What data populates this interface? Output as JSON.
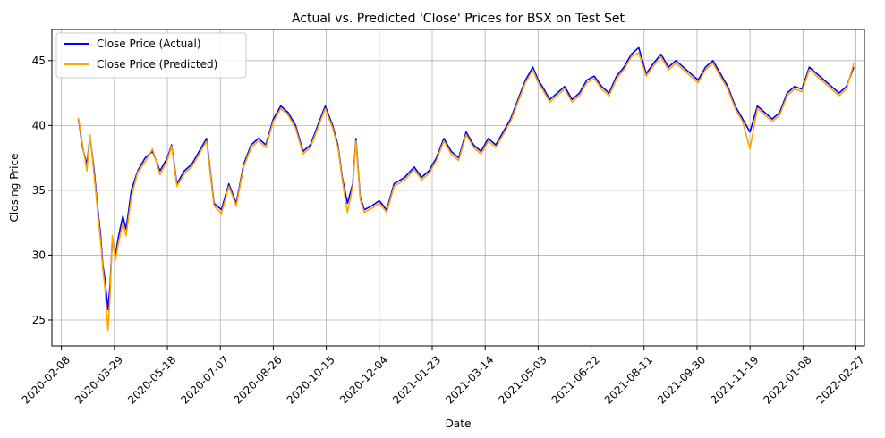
{
  "chart_data": {
    "type": "line",
    "title": "Actual vs. Predicted 'Close' Prices for BSX on Test Set",
    "xlabel": "Date",
    "ylabel": "Closing Price",
    "xlim": [
      "2020-01-30",
      "2022-03-07"
    ],
    "ylim": [
      23,
      47.4
    ],
    "grid": true,
    "legend": "top-left",
    "x_ticks": [
      "2020-02-08",
      "2020-03-29",
      "2020-05-18",
      "2020-07-07",
      "2020-08-26",
      "2020-10-15",
      "2020-12-04",
      "2021-01-23",
      "2021-03-14",
      "2021-05-03",
      "2021-06-22",
      "2021-08-11",
      "2021-09-30",
      "2021-11-19",
      "2022-01-08",
      "2022-02-27"
    ],
    "y_ticks": [
      25,
      30,
      35,
      40,
      45
    ],
    "series": [
      {
        "name": "Close Price (Actual)",
        "color": "#0000ff",
        "x": [
          "2020-02-24",
          "2020-02-28",
          "2020-03-03",
          "2020-03-06",
          "2020-03-10",
          "2020-03-13",
          "2020-03-16",
          "2020-03-18",
          "2020-03-20",
          "2020-03-23",
          "2020-03-25",
          "2020-03-27",
          "2020-03-30",
          "2020-04-02",
          "2020-04-06",
          "2020-04-09",
          "2020-04-14",
          "2020-04-20",
          "2020-04-27",
          "2020-05-04",
          "2020-05-11",
          "2020-05-18",
          "2020-05-22",
          "2020-05-27",
          "2020-06-03",
          "2020-06-10",
          "2020-06-17",
          "2020-06-24",
          "2020-07-01",
          "2020-07-08",
          "2020-07-15",
          "2020-07-22",
          "2020-07-29",
          "2020-08-05",
          "2020-08-12",
          "2020-08-19",
          "2020-08-26",
          "2020-09-02",
          "2020-09-09",
          "2020-09-16",
          "2020-09-23",
          "2020-09-30",
          "2020-10-07",
          "2020-10-14",
          "2020-10-21",
          "2020-10-26",
          "2020-10-30",
          "2020-11-04",
          "2020-11-09",
          "2020-11-12",
          "2020-11-16",
          "2020-11-20",
          "2020-11-27",
          "2020-12-04",
          "2020-12-11",
          "2020-12-18",
          "2020-12-28",
          "2021-01-06",
          "2021-01-13",
          "2021-01-20",
          "2021-01-27",
          "2021-02-03",
          "2021-02-10",
          "2021-02-17",
          "2021-02-24",
          "2021-03-03",
          "2021-03-10",
          "2021-03-17",
          "2021-03-24",
          "2021-03-31",
          "2021-04-07",
          "2021-04-14",
          "2021-04-21",
          "2021-04-28",
          "2021-05-03",
          "2021-05-07",
          "2021-05-14",
          "2021-05-21",
          "2021-05-28",
          "2021-06-04",
          "2021-06-11",
          "2021-06-18",
          "2021-06-25",
          "2021-07-02",
          "2021-07-09",
          "2021-07-16",
          "2021-07-23",
          "2021-07-30",
          "2021-08-06",
          "2021-08-13",
          "2021-08-20",
          "2021-08-27",
          "2021-09-03",
          "2021-09-10",
          "2021-09-17",
          "2021-09-24",
          "2021-10-01",
          "2021-10-08",
          "2021-10-15",
          "2021-10-22",
          "2021-10-29",
          "2021-11-05",
          "2021-11-12",
          "2021-11-19",
          "2021-11-26",
          "2021-12-03",
          "2021-12-10",
          "2021-12-17",
          "2021-12-24",
          "2021-12-31",
          "2022-01-07",
          "2022-01-14",
          "2022-01-21",
          "2022-01-28",
          "2022-02-04",
          "2022-02-11",
          "2022-02-18",
          "2022-02-25"
        ],
        "y": [
          40.5,
          38.3,
          37.0,
          39.2,
          36.4,
          33.8,
          31.5,
          29.3,
          28.2,
          25.8,
          27.8,
          31.2,
          30.0,
          31.5,
          33.0,
          32.0,
          35.0,
          36.5,
          37.5,
          38.0,
          36.5,
          37.5,
          38.5,
          35.5,
          36.5,
          37.0,
          38.0,
          39.0,
          34.0,
          33.5,
          35.5,
          34.0,
          37.0,
          38.5,
          39.0,
          38.5,
          40.5,
          41.5,
          41.0,
          40.0,
          38.0,
          38.5,
          40.0,
          41.5,
          40.0,
          38.5,
          36.0,
          34.0,
          35.5,
          39.0,
          34.5,
          33.5,
          33.8,
          34.2,
          33.5,
          35.5,
          36.0,
          36.8,
          36.0,
          36.5,
          37.5,
          39.0,
          38.0,
          37.5,
          39.5,
          38.5,
          38.0,
          39.0,
          38.5,
          39.5,
          40.5,
          42.0,
          43.5,
          44.5,
          43.5,
          43.0,
          42.0,
          42.5,
          43.0,
          42.0,
          42.5,
          43.5,
          43.8,
          43.0,
          42.5,
          43.8,
          44.5,
          45.5,
          46.0,
          44.0,
          44.8,
          45.5,
          44.5,
          45.0,
          44.5,
          44.0,
          43.5,
          44.5,
          45.0,
          44.0,
          43.0,
          41.5,
          40.5,
          39.5,
          41.5,
          41.0,
          40.5,
          41.0,
          42.5,
          43.0,
          42.8,
          44.5,
          44.0,
          43.5,
          43.0,
          42.5,
          43.0,
          44.5
        ]
      },
      {
        "name": "Close Price (Predicted)",
        "color": "#ffa500",
        "x": [
          "2020-02-24",
          "2020-02-28",
          "2020-03-03",
          "2020-03-06",
          "2020-03-10",
          "2020-03-13",
          "2020-03-16",
          "2020-03-18",
          "2020-03-20",
          "2020-03-23",
          "2020-03-25",
          "2020-03-27",
          "2020-03-30",
          "2020-04-02",
          "2020-04-06",
          "2020-04-09",
          "2020-04-14",
          "2020-04-20",
          "2020-04-27",
          "2020-05-04",
          "2020-05-11",
          "2020-05-18",
          "2020-05-22",
          "2020-05-27",
          "2020-06-03",
          "2020-06-10",
          "2020-06-17",
          "2020-06-24",
          "2020-07-01",
          "2020-07-08",
          "2020-07-15",
          "2020-07-22",
          "2020-07-29",
          "2020-08-05",
          "2020-08-12",
          "2020-08-19",
          "2020-08-26",
          "2020-09-02",
          "2020-09-09",
          "2020-09-16",
          "2020-09-23",
          "2020-09-30",
          "2020-10-07",
          "2020-10-14",
          "2020-10-21",
          "2020-10-26",
          "2020-10-30",
          "2020-11-04",
          "2020-11-09",
          "2020-11-12",
          "2020-11-16",
          "2020-11-20",
          "2020-11-27",
          "2020-12-04",
          "2020-12-11",
          "2020-12-18",
          "2020-12-28",
          "2021-01-06",
          "2021-01-13",
          "2021-01-20",
          "2021-01-27",
          "2021-02-03",
          "2021-02-10",
          "2021-02-17",
          "2021-02-24",
          "2021-03-03",
          "2021-03-10",
          "2021-03-17",
          "2021-03-24",
          "2021-03-31",
          "2021-04-07",
          "2021-04-14",
          "2021-04-21",
          "2021-04-28",
          "2021-05-03",
          "2021-05-07",
          "2021-05-14",
          "2021-05-21",
          "2021-05-28",
          "2021-06-04",
          "2021-06-11",
          "2021-06-18",
          "2021-06-25",
          "2021-07-02",
          "2021-07-09",
          "2021-07-16",
          "2021-07-23",
          "2021-07-30",
          "2021-08-06",
          "2021-08-13",
          "2021-08-20",
          "2021-08-27",
          "2021-09-03",
          "2021-09-10",
          "2021-09-17",
          "2021-09-24",
          "2021-10-01",
          "2021-10-08",
          "2021-10-15",
          "2021-10-22",
          "2021-10-29",
          "2021-11-05",
          "2021-11-12",
          "2021-11-19",
          "2021-11-26",
          "2021-12-03",
          "2021-12-10",
          "2021-12-17",
          "2021-12-24",
          "2021-12-31",
          "2022-01-07",
          "2022-01-14",
          "2022-01-21",
          "2022-01-28",
          "2022-02-04",
          "2022-02-11",
          "2022-02-18",
          "2022-02-25"
        ],
        "y": [
          40.6,
          38.5,
          36.5,
          39.3,
          36.0,
          33.5,
          31.0,
          29.0,
          27.5,
          24.2,
          27.0,
          31.5,
          29.6,
          31.0,
          32.5,
          31.5,
          34.5,
          36.4,
          37.2,
          38.2,
          36.2,
          37.3,
          38.4,
          35.3,
          36.3,
          36.8,
          37.8,
          38.8,
          33.8,
          33.2,
          35.3,
          33.8,
          36.8,
          38.3,
          38.8,
          38.3,
          40.3,
          41.3,
          40.8,
          39.8,
          37.8,
          38.3,
          39.8,
          41.3,
          39.8,
          38.3,
          35.8,
          33.3,
          35.3,
          38.8,
          34.3,
          33.3,
          33.6,
          34.0,
          33.3,
          35.3,
          35.8,
          36.6,
          35.8,
          36.3,
          37.3,
          38.8,
          37.8,
          37.3,
          39.3,
          38.3,
          37.8,
          38.8,
          38.3,
          39.3,
          40.3,
          41.8,
          43.3,
          44.3,
          43.3,
          42.8,
          41.8,
          42.3,
          42.8,
          41.8,
          42.3,
          43.3,
          43.6,
          42.8,
          42.3,
          43.6,
          44.3,
          45.3,
          45.6,
          43.8,
          44.6,
          45.3,
          44.3,
          44.8,
          44.3,
          43.8,
          43.3,
          44.3,
          44.8,
          43.8,
          42.8,
          41.3,
          40.3,
          38.2,
          41.3,
          40.8,
          40.3,
          40.8,
          42.3,
          42.8,
          42.6,
          44.3,
          43.8,
          43.3,
          42.8,
          42.3,
          42.8,
          44.8
        ]
      }
    ]
  }
}
